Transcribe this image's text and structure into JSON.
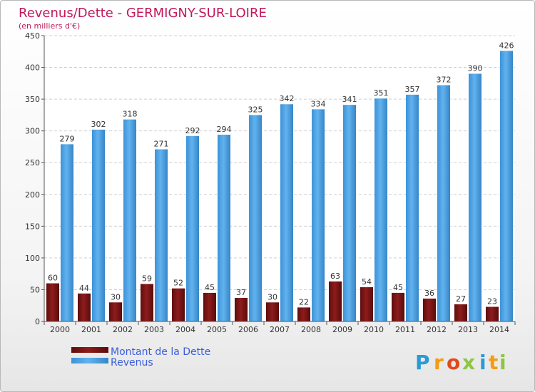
{
  "chart_data": {
    "type": "bar",
    "title": "Revenus/Dette - GERMIGNY-SUR-LOIRE",
    "subtitle": "(en milliers d'€)",
    "categories": [
      "2000",
      "2001",
      "2002",
      "2003",
      "2004",
      "2005",
      "2006",
      "2007",
      "2008",
      "2009",
      "2010",
      "2011",
      "2012",
      "2013",
      "2014"
    ],
    "series": [
      {
        "name": "Montant de la Dette",
        "color": "#7a1414",
        "values": [
          60,
          44,
          30,
          59,
          52,
          45,
          37,
          30,
          22,
          63,
          54,
          45,
          36,
          27,
          23
        ]
      },
      {
        "name": "Revenus",
        "color": "#4aa3e6",
        "values": [
          279,
          302,
          318,
          271,
          292,
          294,
          325,
          342,
          334,
          341,
          351,
          357,
          372,
          390,
          426
        ]
      }
    ],
    "yticks": [
      0,
      50,
      100,
      150,
      200,
      250,
      300,
      350,
      400,
      450
    ],
    "ylim": [
      0,
      450
    ],
    "grid": true,
    "legend": "bottom-left"
  },
  "logo": {
    "letters": [
      "P",
      "r",
      "o",
      "x",
      "i",
      "t",
      "i"
    ],
    "colors": [
      "#2a9ad6",
      "#f39c12",
      "#e04a1a",
      "#8dc63f",
      "#2a9ad6",
      "#f39c12",
      "#8dc63f"
    ]
  }
}
